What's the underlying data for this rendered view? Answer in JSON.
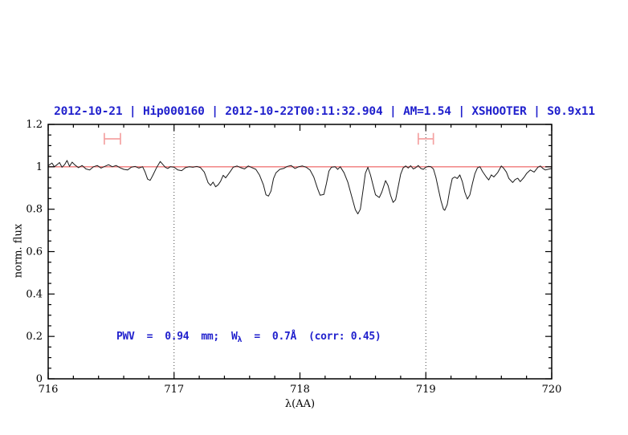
{
  "title": {
    "text": "2012-10-21 | Hip000160 | 2012-10-22T00:11:32.904 | AM=1.54 | XSHOOTER | S0.9x11",
    "color": "#2121cd"
  },
  "annotation": {
    "prefix": "PWV  =  0.94  mm;  W",
    "subscript": "λ",
    "suffix": "  =  0.7Å  (corr: 0.45)",
    "full_text": "PWV = 0.94 mm; W_λ = 0.7Å (corr: 0.45)",
    "color": "#2121cd"
  },
  "axes": {
    "xlabel": "λ(AA)",
    "ylabel": "norm. flux"
  },
  "chart_data": {
    "type": "line",
    "title": "2012-10-21 | Hip000160 | 2012-10-22T00:11:32.904 | AM=1.54 | XSHOOTER | S0.9x11",
    "xlabel": "λ(AA)",
    "ylabel": "norm. flux",
    "xlim": [
      716,
      720
    ],
    "ylim": [
      0,
      1.2
    ],
    "xticks": [
      716,
      717,
      718,
      719,
      720
    ],
    "xtick_labels": [
      "716",
      "717",
      "718",
      "719",
      "720"
    ],
    "x_minor_step": 0.2,
    "yticks": [
      0,
      0.2,
      0.4,
      0.6,
      0.8,
      1,
      1.2
    ],
    "ytick_labels": [
      "0",
      "0.2",
      "0.4",
      "0.6",
      "0.8",
      "1",
      "1.2"
    ],
    "y_minor_step": 0.05,
    "grid": false,
    "legend": "none",
    "continuum_line": {
      "y": 1.0,
      "color": "#f07878"
    },
    "dotted_lines_x": [
      717,
      719
    ],
    "range_markers": [
      {
        "x": 716.51,
        "y": 1.132,
        "half_width": 0.064,
        "cap_height": 0.055,
        "color": "#f4a2a2"
      },
      {
        "x": 719.0,
        "y": 1.132,
        "half_width": 0.06,
        "cap_height": 0.055,
        "color": "#f4a2a2"
      }
    ],
    "series": [
      {
        "name": "normalized telluric spectrum",
        "color": "#1a1a1a",
        "points": [
          [
            716.0,
            1.005
          ],
          [
            716.03,
            1.018
          ],
          [
            716.05,
            1.0
          ],
          [
            716.07,
            1.01
          ],
          [
            716.09,
            1.02
          ],
          [
            716.11,
            0.998
          ],
          [
            716.13,
            1.01
          ],
          [
            716.15,
            1.03
          ],
          [
            716.17,
            1.002
          ],
          [
            716.19,
            1.022
          ],
          [
            716.21,
            1.01
          ],
          [
            716.24,
            0.996
          ],
          [
            716.27,
            1.006
          ],
          [
            716.3,
            0.99
          ],
          [
            716.33,
            0.985
          ],
          [
            716.36,
            1.0
          ],
          [
            716.39,
            1.006
          ],
          [
            716.42,
            0.994
          ],
          [
            716.45,
            1.002
          ],
          [
            716.48,
            1.01
          ],
          [
            716.51,
            1.0
          ],
          [
            716.54,
            1.006
          ],
          [
            716.57,
            0.996
          ],
          [
            716.6,
            0.988
          ],
          [
            716.63,
            0.985
          ],
          [
            716.66,
            0.998
          ],
          [
            716.69,
            1.002
          ],
          [
            716.72,
            0.994
          ],
          [
            716.75,
            1.0
          ],
          [
            716.77,
            0.975
          ],
          [
            716.79,
            0.942
          ],
          [
            716.81,
            0.936
          ],
          [
            716.83,
            0.958
          ],
          [
            716.86,
            0.995
          ],
          [
            716.89,
            1.025
          ],
          [
            716.91,
            1.012
          ],
          [
            716.93,
            0.998
          ],
          [
            716.95,
            0.992
          ],
          [
            716.97,
            1.0
          ],
          [
            717.0,
            0.998
          ],
          [
            717.03,
            0.985
          ],
          [
            717.06,
            0.982
          ],
          [
            717.09,
            0.996
          ],
          [
            717.12,
            1.0
          ],
          [
            717.15,
            0.998
          ],
          [
            717.18,
            1.002
          ],
          [
            717.21,
            0.996
          ],
          [
            717.24,
            0.975
          ],
          [
            717.27,
            0.925
          ],
          [
            717.29,
            0.912
          ],
          [
            717.31,
            0.928
          ],
          [
            717.33,
            0.906
          ],
          [
            717.35,
            0.915
          ],
          [
            717.37,
            0.932
          ],
          [
            717.39,
            0.96
          ],
          [
            717.41,
            0.948
          ],
          [
            717.44,
            0.972
          ],
          [
            717.47,
            0.998
          ],
          [
            717.5,
            1.004
          ],
          [
            717.53,
            0.996
          ],
          [
            717.56,
            0.99
          ],
          [
            717.59,
            1.004
          ],
          [
            717.62,
            0.996
          ],
          [
            717.65,
            0.988
          ],
          [
            717.68,
            0.96
          ],
          [
            717.71,
            0.915
          ],
          [
            717.73,
            0.868
          ],
          [
            717.75,
            0.862
          ],
          [
            717.77,
            0.885
          ],
          [
            717.79,
            0.945
          ],
          [
            717.81,
            0.972
          ],
          [
            717.84,
            0.988
          ],
          [
            717.87,
            0.992
          ],
          [
            717.9,
            1.002
          ],
          [
            717.93,
            1.006
          ],
          [
            717.96,
            0.992
          ],
          [
            717.99,
            1.0
          ],
          [
            718.02,
            1.004
          ],
          [
            718.05,
            0.998
          ],
          [
            718.08,
            0.985
          ],
          [
            718.11,
            0.952
          ],
          [
            718.14,
            0.898
          ],
          [
            718.16,
            0.866
          ],
          [
            718.19,
            0.87
          ],
          [
            718.21,
            0.92
          ],
          [
            718.23,
            0.98
          ],
          [
            718.25,
            0.998
          ],
          [
            718.28,
            1.0
          ],
          [
            718.3,
            0.988
          ],
          [
            718.32,
            1.0
          ],
          [
            718.35,
            0.972
          ],
          [
            718.38,
            0.928
          ],
          [
            718.41,
            0.862
          ],
          [
            718.44,
            0.798
          ],
          [
            718.46,
            0.778
          ],
          [
            718.48,
            0.8
          ],
          [
            718.5,
            0.885
          ],
          [
            718.52,
            0.97
          ],
          [
            718.54,
            0.998
          ],
          [
            718.56,
            0.962
          ],
          [
            718.58,
            0.915
          ],
          [
            718.6,
            0.868
          ],
          [
            718.63,
            0.855
          ],
          [
            718.65,
            0.88
          ],
          [
            718.68,
            0.935
          ],
          [
            718.7,
            0.912
          ],
          [
            718.72,
            0.865
          ],
          [
            718.74,
            0.832
          ],
          [
            718.76,
            0.845
          ],
          [
            718.78,
            0.905
          ],
          [
            718.8,
            0.965
          ],
          [
            718.82,
            0.995
          ],
          [
            718.84,
            1.004
          ],
          [
            718.86,
            0.994
          ],
          [
            718.88,
            1.005
          ],
          [
            718.9,
            0.99
          ],
          [
            718.92,
            0.996
          ],
          [
            718.94,
            1.006
          ],
          [
            718.96,
            0.992
          ],
          [
            718.98,
            0.988
          ],
          [
            719.0,
            0.998
          ],
          [
            719.02,
            1.002
          ],
          [
            719.04,
            1.0
          ],
          [
            719.06,
            0.99
          ],
          [
            719.08,
            0.95
          ],
          [
            719.1,
            0.895
          ],
          [
            719.12,
            0.84
          ],
          [
            719.14,
            0.8
          ],
          [
            719.15,
            0.795
          ],
          [
            719.17,
            0.822
          ],
          [
            719.19,
            0.89
          ],
          [
            719.21,
            0.945
          ],
          [
            719.23,
            0.952
          ],
          [
            719.25,
            0.945
          ],
          [
            719.27,
            0.962
          ],
          [
            719.29,
            0.93
          ],
          [
            719.31,
            0.88
          ],
          [
            719.33,
            0.848
          ],
          [
            719.35,
            0.868
          ],
          [
            719.37,
            0.92
          ],
          [
            719.39,
            0.968
          ],
          [
            719.41,
            0.995
          ],
          [
            719.43,
            1.0
          ],
          [
            719.45,
            0.978
          ],
          [
            719.48,
            0.952
          ],
          [
            719.5,
            0.938
          ],
          [
            719.52,
            0.962
          ],
          [
            719.54,
            0.952
          ],
          [
            719.57,
            0.972
          ],
          [
            719.6,
            1.004
          ],
          [
            719.62,
            0.992
          ],
          [
            719.64,
            0.975
          ],
          [
            719.66,
            0.945
          ],
          [
            719.69,
            0.926
          ],
          [
            719.71,
            0.94
          ],
          [
            719.73,
            0.946
          ],
          [
            719.75,
            0.93
          ],
          [
            719.78,
            0.95
          ],
          [
            719.8,
            0.968
          ],
          [
            719.83,
            0.985
          ],
          [
            719.86,
            0.975
          ],
          [
            719.89,
            0.998
          ],
          [
            719.91,
            1.004
          ],
          [
            719.93,
            0.992
          ],
          [
            719.95,
            0.985
          ],
          [
            719.97,
            0.988
          ],
          [
            720.0,
            0.992
          ]
        ]
      }
    ]
  }
}
